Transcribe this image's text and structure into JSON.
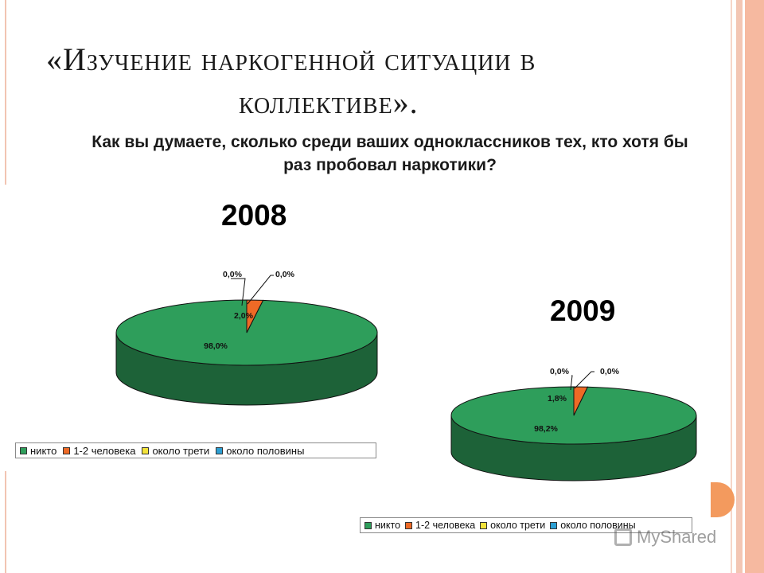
{
  "slide": {
    "title_line1": "«Изучение наркогенной ситуации в",
    "title_line2": "коллективе».",
    "question": "Как вы думаете, сколько среди ваших одноклассников тех, кто хотя бы раз пробовал наркотики?",
    "watermark": "MyShared"
  },
  "colors": {
    "никто": "#2e9e5b",
    "1-2 человека": "#ee6a26",
    "около трети": "#f3e33b",
    "около половины": "#2c9fd3"
  },
  "chart_data": [
    {
      "type": "pie",
      "title": "2008",
      "legend_position": "bottom",
      "categories": [
        "никто",
        "1-2 человека",
        "около трети",
        "около половины"
      ],
      "values": [
        98.0,
        2.0,
        0.0,
        0.0
      ],
      "labels": [
        "98,0%",
        "2,0%",
        "0,0%",
        "0,0%"
      ]
    },
    {
      "type": "pie",
      "title": "2009",
      "legend_position": "bottom",
      "categories": [
        "никто",
        "1-2 человека",
        "около трети",
        "около половины"
      ],
      "values": [
        98.2,
        1.8,
        0.0,
        0.0
      ],
      "labels": [
        "98,2%",
        "1,8%",
        "0,0%",
        "0,0%"
      ]
    }
  ]
}
